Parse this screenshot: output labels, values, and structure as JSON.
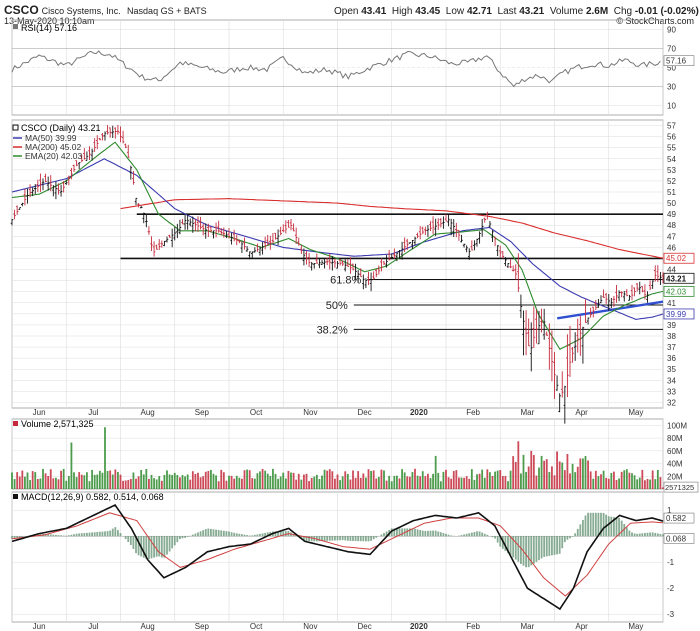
{
  "header": {
    "symbol": "CSCO",
    "company": "Cisco Systems, Inc.",
    "exchange": "Nasdaq GS + BATS",
    "date": "13-May-2020 10:10am",
    "quote_labels": {
      "open": "Open",
      "high": "High",
      "low": "Low",
      "last": "Last",
      "volume": "Volume",
      "chg": "Chg"
    },
    "quote": {
      "open": "43.41",
      "high": "43.45",
      "low": "42.71",
      "last": "43.21",
      "volume": "2.6M",
      "chg": "-0.01 (-0.02%)"
    },
    "credit": "© StockCharts.com"
  },
  "colors": {
    "price": "#111111",
    "ma50": "#3b3bb0",
    "ma200": "#d93030",
    "ema20": "#2e8b2e",
    "rsi": "#777777",
    "rsi_fill": "#3d5a9e",
    "macd": "#111111",
    "signal": "#d04040",
    "histogram": "#5f8f6f",
    "volume_up": "#2e8b2e",
    "volume_down": "#c42a3c",
    "trendline": "#3050d0",
    "grid": "#dcdcdc"
  },
  "x_axis": {
    "labels": [
      {
        "m": 0.5,
        "t": "Jun"
      },
      {
        "m": 1.5,
        "t": "Jul"
      },
      {
        "m": 2.5,
        "t": "Aug"
      },
      {
        "m": 3.5,
        "t": "Sep"
      },
      {
        "m": 4.5,
        "t": "Oct"
      },
      {
        "m": 5.5,
        "t": "Nov"
      },
      {
        "m": 6.5,
        "t": "Dec"
      },
      {
        "m": 7.5,
        "t": "2020"
      },
      {
        "m": 8.5,
        "t": "Feb"
      },
      {
        "m": 9.5,
        "t": "Mar"
      },
      {
        "m": 10.5,
        "t": "Apr"
      },
      {
        "m": 11.5,
        "t": "May"
      }
    ]
  },
  "rsi_panel": {
    "label": "RSI(14) 57.16",
    "ticks": [
      "90",
      "70",
      "50",
      "30",
      "10"
    ],
    "tick_values": [
      90,
      70,
      50,
      30,
      10
    ],
    "last_label": "57.16",
    "last": 57.16
  },
  "price_panel": {
    "legend": {
      "title": "CSCO (Daily) 43.21",
      "ma50": "MA(50) 39.99",
      "ma200": "MA(200) 45.02",
      "ema20": "EMA(20) 42.03"
    },
    "ticks": [
      "57",
      "56",
      "55",
      "54",
      "53",
      "52",
      "51",
      "50",
      "49",
      "48",
      "47",
      "46",
      "45",
      "44",
      "43",
      "42",
      "41",
      "40",
      "39",
      "38",
      "37",
      "36",
      "35",
      "34",
      "33",
      "32"
    ],
    "tags": [
      {
        "v": 45.02,
        "t": "45.02",
        "c": "#d93030"
      },
      {
        "v": 43.21,
        "t": "43.21",
        "c": "#111111"
      },
      {
        "v": 42.03,
        "t": "42.03",
        "c": "#2e8b2e"
      },
      {
        "v": 39.99,
        "t": "39.99",
        "c": "#3b3bb0"
      }
    ],
    "levels": [
      {
        "price": 49.0,
        "start_month": 2.3
      },
      {
        "price": 45.0,
        "start_month": 2.0
      },
      {
        "price": 43.1,
        "start_month": 6.55,
        "label": "61.8%"
      },
      {
        "price": 40.8,
        "start_month": 6.3,
        "label": "50%"
      },
      {
        "price": 38.6,
        "start_month": 6.3,
        "label": "38.2%"
      }
    ],
    "trendline": {
      "from": [
        10.05,
        39.6
      ],
      "to": [
        12.0,
        41.1
      ]
    }
  },
  "volume_panel": {
    "label": "Volume 2,571,325",
    "ticks": [
      "100M",
      "80M",
      "60M",
      "40M",
      "20M"
    ],
    "tick_values": [
      100,
      80,
      60,
      40,
      20
    ],
    "last_label": "2571325"
  },
  "macd_panel": {
    "label": "MACD(12,26,9) 0.582, 0.514, 0.068",
    "ticks": [
      "1",
      "0",
      "-1",
      "-2",
      "-3"
    ],
    "tick_values": [
      1,
      0,
      -1,
      -2,
      -3
    ],
    "tags": [
      {
        "v": 0.582,
        "t": "0.582"
      },
      {
        "v": 0.068,
        "t": "0.068"
      }
    ]
  },
  "chart_data": {
    "type": "line",
    "title": "CSCO (Daily) 43.21",
    "x_range": [
      "2019-05-13",
      "2020-05-13"
    ],
    "x_months": [
      "Jun",
      "Jul",
      "Aug",
      "Sep",
      "Oct",
      "Nov",
      "Dec",
      "2020",
      "Feb",
      "Mar",
      "Apr",
      "May"
    ],
    "price_ylim": [
      31.5,
      57.5
    ],
    "price_anchors": [
      [
        0,
        48.5
      ],
      [
        0.3,
        50.8
      ],
      [
        0.6,
        52
      ],
      [
        0.9,
        51
      ],
      [
        1.2,
        53.5
      ],
      [
        1.45,
        54.5
      ],
      [
        1.7,
        56.3
      ],
      [
        1.95,
        56.5
      ],
      [
        2.1,
        55
      ],
      [
        2.2,
        53
      ],
      [
        2.3,
        50
      ],
      [
        2.4,
        49.5
      ],
      [
        2.5,
        48
      ],
      [
        2.6,
        45.5
      ],
      [
        2.8,
        46.5
      ],
      [
        3.05,
        47.5
      ],
      [
        3.2,
        48.5
      ],
      [
        3.4,
        48
      ],
      [
        3.6,
        47.5
      ],
      [
        3.8,
        47.5
      ],
      [
        4.0,
        47
      ],
      [
        4.2,
        46.5
      ],
      [
        4.4,
        45.5
      ],
      [
        4.6,
        46
      ],
      [
        4.8,
        46.5
      ],
      [
        5.0,
        47.5
      ],
      [
        5.15,
        48
      ],
      [
        5.35,
        45.5
      ],
      [
        5.5,
        44.5
      ],
      [
        5.8,
        44.7
      ],
      [
        6.1,
        44.5
      ],
      [
        6.3,
        44
      ],
      [
        6.5,
        43
      ],
      [
        6.65,
        43.1
      ],
      [
        6.85,
        44.5
      ],
      [
        7.1,
        45.5
      ],
      [
        7.35,
        46.5
      ],
      [
        7.6,
        47.5
      ],
      [
        7.85,
        48
      ],
      [
        8.05,
        48.5
      ],
      [
        8.2,
        47.5
      ],
      [
        8.3,
        46.5
      ],
      [
        8.45,
        45.5
      ],
      [
        8.6,
        47
      ],
      [
        8.75,
        49
      ],
      [
        8.85,
        47.5
      ],
      [
        9.0,
        45.5
      ],
      [
        9.15,
        44.5
      ],
      [
        9.3,
        43.5
      ],
      [
        9.4,
        40
      ],
      [
        9.55,
        36.5
      ],
      [
        9.65,
        38.5
      ],
      [
        9.8,
        39.5
      ],
      [
        9.9,
        37
      ],
      [
        10.0,
        34.5
      ],
      [
        10.1,
        32.5
      ],
      [
        10.2,
        33.5
      ],
      [
        10.3,
        36
      ],
      [
        10.45,
        38
      ],
      [
        10.6,
        39.5
      ],
      [
        10.75,
        40.5
      ],
      [
        10.9,
        41.5
      ],
      [
        11.05,
        41
      ],
      [
        11.2,
        42
      ],
      [
        11.4,
        41.5
      ],
      [
        11.55,
        42.5
      ],
      [
        11.7,
        41.5
      ],
      [
        11.85,
        43.5
      ],
      [
        12.0,
        43.21
      ]
    ],
    "ma50_anchors": [
      [
        0,
        51
      ],
      [
        1,
        52.2
      ],
      [
        1.7,
        54
      ],
      [
        2.3,
        52.5
      ],
      [
        3.0,
        49.5
      ],
      [
        3.6,
        48
      ],
      [
        4.3,
        47
      ],
      [
        5.0,
        46
      ],
      [
        5.6,
        45.6
      ],
      [
        6.3,
        45.2
      ],
      [
        7.0,
        45.4
      ],
      [
        7.6,
        46.5
      ],
      [
        8.3,
        47.5
      ],
      [
        8.8,
        47.8
      ],
      [
        9.2,
        46.5
      ],
      [
        9.6,
        44.5
      ],
      [
        10.1,
        42.5
      ],
      [
        10.5,
        41.5
      ],
      [
        11.0,
        40.5
      ],
      [
        11.5,
        39.5
      ],
      [
        11.8,
        39.7
      ],
      [
        12.0,
        39.99
      ]
    ],
    "ma200_anchors": [
      [
        2.0,
        49.5
      ],
      [
        3.0,
        50.3
      ],
      [
        4.0,
        50.4
      ],
      [
        5.0,
        50.2
      ],
      [
        6.0,
        50.0
      ],
      [
        6.6,
        49.7
      ],
      [
        7.2,
        49.5
      ],
      [
        8.0,
        49.3
      ],
      [
        8.8,
        48.8
      ],
      [
        9.4,
        48.2
      ],
      [
        10.0,
        47.3
      ],
      [
        10.6,
        46.6
      ],
      [
        11.2,
        45.8
      ],
      [
        12.0,
        45.02
      ]
    ],
    "ema20_anchors": [
      [
        0,
        50.5
      ],
      [
        0.5,
        50.8
      ],
      [
        1.0,
        52
      ],
      [
        1.5,
        54
      ],
      [
        1.9,
        55.5
      ],
      [
        2.3,
        53
      ],
      [
        2.7,
        49
      ],
      [
        3.1,
        47.5
      ],
      [
        3.6,
        47.5
      ],
      [
        4.1,
        46.8
      ],
      [
        4.6,
        46
      ],
      [
        5.1,
        46.8
      ],
      [
        5.5,
        45.8
      ],
      [
        6.0,
        45
      ],
      [
        6.5,
        43.8
      ],
      [
        6.9,
        44.3
      ],
      [
        7.3,
        45.6
      ],
      [
        7.8,
        47.2
      ],
      [
        8.3,
        47.4
      ],
      [
        8.7,
        47.6
      ],
      [
        9.1,
        46.2
      ],
      [
        9.4,
        44
      ],
      [
        9.7,
        40
      ],
      [
        10.1,
        36.8
      ],
      [
        10.5,
        37.8
      ],
      [
        10.9,
        39.8
      ],
      [
        11.3,
        40.8
      ],
      [
        11.8,
        41.8
      ],
      [
        12.0,
        42.03
      ]
    ],
    "rsi_anchors": [
      [
        0,
        48
      ],
      [
        0.5,
        62
      ],
      [
        1.0,
        52
      ],
      [
        1.5,
        66
      ],
      [
        1.8,
        64
      ],
      [
        2.1,
        52
      ],
      [
        2.4,
        40
      ],
      [
        2.7,
        36
      ],
      [
        3.1,
        55
      ],
      [
        3.5,
        50
      ],
      [
        3.9,
        45
      ],
      [
        4.3,
        50
      ],
      [
        4.7,
        48
      ],
      [
        5.0,
        60
      ],
      [
        5.4,
        44
      ],
      [
        5.8,
        48
      ],
      [
        6.2,
        40
      ],
      [
        6.6,
        50
      ],
      [
        7.0,
        58
      ],
      [
        7.3,
        64
      ],
      [
        7.7,
        62
      ],
      [
        8.1,
        54
      ],
      [
        8.4,
        55
      ],
      [
        8.75,
        62
      ],
      [
        9.0,
        45
      ],
      [
        9.25,
        30
      ],
      [
        9.45,
        38
      ],
      [
        9.7,
        42
      ],
      [
        9.95,
        35
      ],
      [
        10.15,
        44
      ],
      [
        10.4,
        50
      ],
      [
        10.7,
        54
      ],
      [
        11.0,
        52
      ],
      [
        11.3,
        58
      ],
      [
        11.6,
        52
      ],
      [
        11.9,
        55
      ],
      [
        12.0,
        57.16
      ]
    ],
    "macd_anchors": [
      [
        0,
        -0.2
      ],
      [
        0.5,
        0.1
      ],
      [
        1.0,
        0.3
      ],
      [
        1.5,
        0.8
      ],
      [
        1.9,
        1.2
      ],
      [
        2.2,
        0.3
      ],
      [
        2.5,
        -0.9
      ],
      [
        2.8,
        -1.6
      ],
      [
        3.2,
        -1.2
      ],
      [
        3.6,
        -0.6
      ],
      [
        4.0,
        -0.4
      ],
      [
        4.4,
        -0.3
      ],
      [
        4.8,
        0.1
      ],
      [
        5.1,
        0.3
      ],
      [
        5.4,
        -0.2
      ],
      [
        5.8,
        -0.4
      ],
      [
        6.2,
        -0.6
      ],
      [
        6.6,
        -0.7
      ],
      [
        7.0,
        0.2
      ],
      [
        7.4,
        0.6
      ],
      [
        7.8,
        0.8
      ],
      [
        8.2,
        0.7
      ],
      [
        8.6,
        0.9
      ],
      [
        8.9,
        0.4
      ],
      [
        9.2,
        -0.8
      ],
      [
        9.5,
        -2.0
      ],
      [
        9.8,
        -2.4
      ],
      [
        10.1,
        -2.8
      ],
      [
        10.35,
        -2.0
      ],
      [
        10.6,
        -0.6
      ],
      [
        10.9,
        0.3
      ],
      [
        11.2,
        0.8
      ],
      [
        11.5,
        0.6
      ],
      [
        11.8,
        0.7
      ],
      [
        12.0,
        0.582
      ]
    ],
    "signal_anchors": [
      [
        0,
        -0.1
      ],
      [
        0.6,
        0.05
      ],
      [
        1.2,
        0.4
      ],
      [
        1.8,
        0.9
      ],
      [
        2.3,
        0.6
      ],
      [
        2.7,
        -0.6
      ],
      [
        3.1,
        -1.2
      ],
      [
        3.6,
        -0.9
      ],
      [
        4.1,
        -0.5
      ],
      [
        4.6,
        -0.2
      ],
      [
        5.1,
        0.1
      ],
      [
        5.6,
        -0.1
      ],
      [
        6.1,
        -0.4
      ],
      [
        6.6,
        -0.5
      ],
      [
        7.1,
        0.0
      ],
      [
        7.6,
        0.5
      ],
      [
        8.1,
        0.7
      ],
      [
        8.6,
        0.7
      ],
      [
        9.0,
        0.4
      ],
      [
        9.4,
        -0.5
      ],
      [
        9.8,
        -1.6
      ],
      [
        10.2,
        -2.3
      ],
      [
        10.6,
        -1.5
      ],
      [
        11.0,
        -0.3
      ],
      [
        11.4,
        0.5
      ],
      [
        11.8,
        0.55
      ],
      [
        12.0,
        0.514
      ]
    ],
    "volume_millions": {
      "typical": 22,
      "spikes": [
        [
          1.1,
          73
        ],
        [
          1.7,
          97
        ],
        [
          7.8,
          52
        ],
        [
          9.35,
          75
        ],
        [
          9.55,
          60
        ],
        [
          9.75,
          52
        ],
        [
          10.05,
          59
        ],
        [
          10.25,
          55
        ],
        [
          10.5,
          48
        ],
        [
          11.6,
          30
        ]
      ]
    },
    "volume_ylim": [
      0,
      110
    ],
    "macd_ylim": [
      -3.3,
      1.7
    ]
  }
}
